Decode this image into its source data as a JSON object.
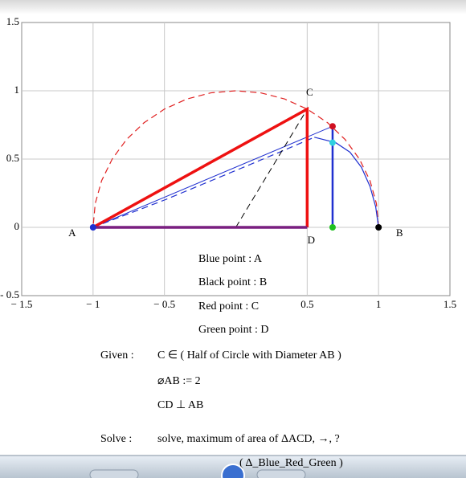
{
  "chart_data": {
    "type": "line",
    "xlim": [
      -1.5,
      1.5
    ],
    "ylim": [
      -0.5,
      1.5
    ],
    "xticks": [
      {
        "value": -1.5,
        "label": "− 1.5"
      },
      {
        "value": -1,
        "label": "− 1"
      },
      {
        "value": -0.5,
        "label": "− 0.5"
      },
      0.5,
      1,
      1.5
    ],
    "yticks": [
      {
        "value": -0.5,
        "label": "- 0.5"
      },
      0,
      0.5,
      1,
      1.5
    ],
    "grid": true,
    "series": [
      {
        "color": "#e02020",
        "dash": true,
        "width": 1.2,
        "x": [
          1,
          0.985,
          0.94,
          0.866,
          0.766,
          0.643,
          0.5,
          0.342,
          0.174,
          0,
          -0.174,
          -0.342,
          -0.5,
          -0.643,
          -0.766,
          -0.866,
          -0.94,
          -0.985,
          -1
        ],
        "values": [
          0,
          0.174,
          0.342,
          0.5,
          0.643,
          0.766,
          0.866,
          0.94,
          0.985,
          1,
          0.985,
          0.94,
          0.866,
          0.766,
          0.643,
          0.5,
          0.342,
          0.174,
          0
        ]
      },
      {
        "color": "#2030d0",
        "dash": true,
        "width": 1.2,
        "x": [
          -1,
          -0.8,
          -0.5,
          -0.2,
          0.1,
          0.35,
          0.55
        ],
        "values": [
          0,
          0.08,
          0.2,
          0.33,
          0.46,
          0.57,
          0.66
        ]
      },
      {
        "color": "#2030d0",
        "dash": false,
        "width": 1.2,
        "x": [
          0.55,
          0.7,
          0.8,
          0.88,
          0.94,
          0.98,
          1
        ],
        "values": [
          0.66,
          0.62,
          0.55,
          0.44,
          0.3,
          0.15,
          0
        ]
      },
      {
        "color": "#2030d0",
        "dash": false,
        "width": 1,
        "x": [
          -1,
          0.678
        ],
        "values": [
          0,
          0.74
        ]
      },
      {
        "color": "#2030d0",
        "dash": false,
        "width": 2.5,
        "x": [
          0.678,
          0.678
        ],
        "values": [
          0.74,
          0
        ]
      },
      {
        "color": "#000000",
        "dash": true,
        "width": 1,
        "x": [
          0,
          0.5
        ],
        "values": [
          0,
          0.866
        ]
      },
      {
        "color": "#ee1111",
        "dash": false,
        "width": 3.5,
        "x": [
          -1,
          0.5,
          0.5
        ],
        "values": [
          0,
          0.866,
          0
        ]
      },
      {
        "color": "#7a1f80",
        "dash": false,
        "width": 3.5,
        "x": [
          -1,
          0.5
        ],
        "values": [
          0,
          0
        ]
      }
    ],
    "points": {
      "x": [
        -1,
        1,
        0.678,
        0.678,
        0.678
      ],
      "values": [
        0,
        0,
        0.74,
        0.62,
        0
      ],
      "colors": [
        "#2030d0",
        "#000000",
        "#d01020",
        "#30d0e0",
        "#20c020"
      ]
    },
    "vertices": {
      "labels": [
        "A",
        "B",
        "C",
        "D"
      ],
      "x": [
        -1,
        1,
        0.5,
        0.5
      ],
      "values": [
        0,
        0,
        0.866,
        0
      ]
    }
  },
  "worksheet": {
    "definitions": [
      "Blue point :  A",
      "Black point :  B",
      "Red point :  C",
      "Green point : D"
    ],
    "given_label": "Given :",
    "given": [
      "C ∈ ( Half of Circle with Diameter AB )",
      "⌀AB := 2",
      "CD ⊥ AB"
    ],
    "solve_label": "Solve :",
    "solve": "solve, maximum of area of ΔACD, →, ?",
    "footer": "( Δ_Blue_Red_Green )"
  }
}
